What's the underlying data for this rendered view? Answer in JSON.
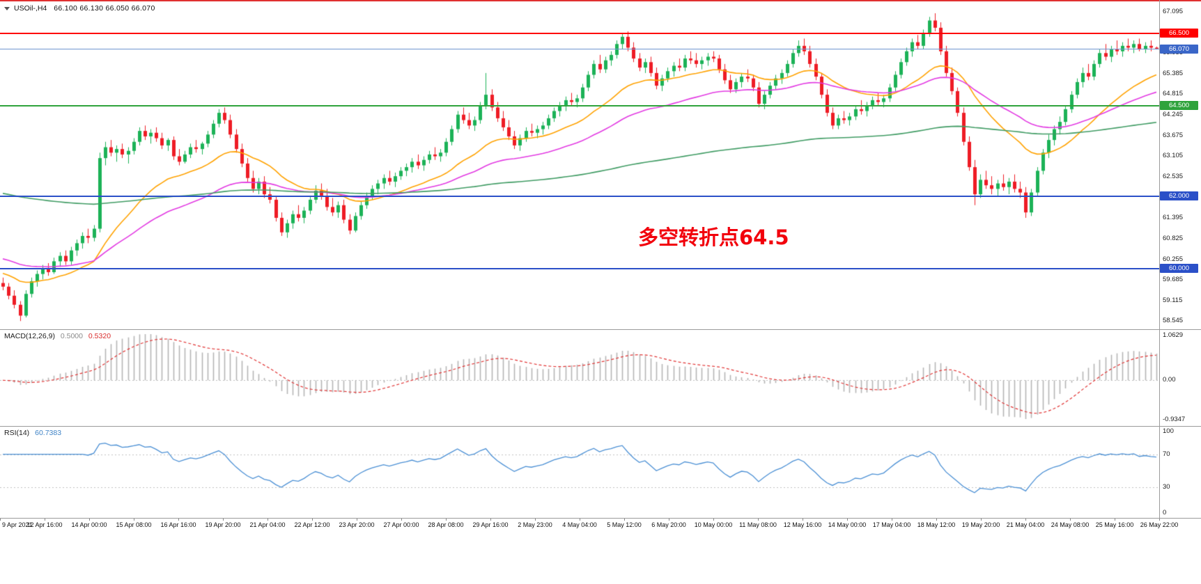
{
  "header": {
    "symbol": "USOil-,H4",
    "ohlc": "66.100 66.130 66.050 66.070"
  },
  "annotation": {
    "text": "多空转折点64.5",
    "color": "#f2000c"
  },
  "macd_panel": {
    "label": "MACD(12,26,9)",
    "value1": "0.5000",
    "value2": "0.5320",
    "axis": [
      "1.0629",
      "0.00",
      "-0.9347"
    ]
  },
  "rsi_panel": {
    "label": "RSI(14)",
    "value": "60.7383",
    "axis": [
      "100",
      "70",
      "30",
      "0"
    ]
  },
  "chart_data": {
    "type": "candlestick",
    "symbol": "USOil-",
    "timeframe": "H4",
    "ylim": [
      58.42,
      67.32
    ],
    "price_ticks": [
      67.095,
      66.525,
      65.955,
      65.385,
      64.815,
      64.245,
      63.675,
      63.105,
      62.535,
      61.965,
      61.395,
      60.825,
      60.255,
      59.685,
      59.115,
      58.545
    ],
    "x_tick_labels": [
      "9 Apr 2021",
      "12 Apr 16:00",
      "14 Apr 00:00",
      "15 Apr 08:00",
      "16 Apr 16:00",
      "19 Apr 20:00",
      "21 Apr 04:00",
      "22 Apr 12:00",
      "23 Apr 20:00",
      "27 Apr 00:00",
      "28 Apr 08:00",
      "29 Apr 16:00",
      "2 May 23:00",
      "4 May 04:00",
      "5 May 12:00",
      "6 May 20:00",
      "10 May 00:00",
      "11 May 08:00",
      "12 May 16:00",
      "14 May 00:00",
      "17 May 04:00",
      "18 May 12:00",
      "19 May 20:00",
      "21 May 04:00",
      "24 May 08:00",
      "25 May 16:00",
      "26 May 22:00"
    ],
    "hlines": [
      {
        "price": 66.5,
        "label": "66.500",
        "color": "#fe0000"
      },
      {
        "price": 64.5,
        "label": "64.500",
        "color": "#2fa33c"
      },
      {
        "price": 62.0,
        "label": "62.000",
        "color": "#2b50c8"
      },
      {
        "price": 60.0,
        "label": "60.000",
        "color": "#2b50c8"
      }
    ],
    "current_price": {
      "value": 66.07,
      "label": "66.070",
      "line_color": "#6f94cf",
      "badge_color": "#3a66c8"
    },
    "colors": {
      "up": "#1cb257",
      "down": "#ee1c25",
      "macd_hist": "#b5b5b5",
      "macd_signal": "#e03131",
      "rsi": "#4a8fd4"
    },
    "moving_averages": [
      {
        "name": "ema-fast",
        "period": 22,
        "seed": 59.9,
        "color": "#ffa200"
      },
      {
        "name": "ema-medium",
        "period": 48,
        "seed": 60.3,
        "color": "#e23ae2"
      },
      {
        "name": "ema-slow",
        "period": 200,
        "seed": 62.1,
        "color": "#3f9b63"
      }
    ],
    "macd_params": [
      12,
      26,
      9
    ],
    "rsi_period": 14,
    "rsi_levels": [
      70,
      30
    ],
    "candles": [
      [
        59.6,
        59.75,
        59.4,
        59.5
      ],
      [
        59.5,
        59.6,
        59.15,
        59.25
      ],
      [
        59.25,
        59.4,
        58.9,
        59.0
      ],
      [
        59.0,
        59.1,
        58.55,
        58.7
      ],
      [
        58.7,
        59.4,
        58.65,
        59.3
      ],
      [
        59.3,
        59.75,
        59.2,
        59.65
      ],
      [
        59.65,
        59.95,
        59.5,
        59.85
      ],
      [
        59.85,
        60.1,
        59.7,
        60.0
      ],
      [
        60.0,
        60.15,
        59.8,
        59.9
      ],
      [
        59.9,
        60.3,
        59.85,
        60.2
      ],
      [
        60.2,
        60.45,
        60.05,
        60.35
      ],
      [
        60.35,
        60.5,
        60.1,
        60.2
      ],
      [
        60.2,
        60.6,
        60.1,
        60.5
      ],
      [
        60.5,
        60.8,
        60.35,
        60.7
      ],
      [
        60.7,
        61.0,
        60.55,
        60.9
      ],
      [
        60.9,
        61.1,
        60.7,
        60.85
      ],
      [
        60.85,
        61.2,
        60.75,
        61.1
      ],
      [
        61.1,
        63.2,
        61.0,
        63.05
      ],
      [
        63.05,
        63.5,
        62.85,
        63.35
      ],
      [
        63.35,
        63.55,
        63.1,
        63.2
      ],
      [
        63.2,
        63.4,
        62.95,
        63.3
      ],
      [
        63.3,
        63.45,
        63.05,
        63.15
      ],
      [
        63.15,
        63.35,
        62.9,
        63.25
      ],
      [
        63.25,
        63.6,
        63.15,
        63.5
      ],
      [
        63.5,
        63.9,
        63.4,
        63.8
      ],
      [
        63.8,
        63.95,
        63.55,
        63.65
      ],
      [
        63.65,
        63.85,
        63.45,
        63.75
      ],
      [
        63.75,
        63.9,
        63.5,
        63.6
      ],
      [
        63.6,
        63.75,
        63.3,
        63.4
      ],
      [
        63.4,
        63.6,
        63.25,
        63.55
      ],
      [
        63.55,
        63.65,
        63.0,
        63.1
      ],
      [
        63.1,
        63.3,
        62.85,
        62.95
      ],
      [
        62.95,
        63.25,
        62.9,
        63.15
      ],
      [
        63.15,
        63.45,
        63.05,
        63.35
      ],
      [
        63.35,
        63.55,
        63.2,
        63.3
      ],
      [
        63.3,
        63.5,
        63.15,
        63.45
      ],
      [
        63.45,
        63.8,
        63.35,
        63.7
      ],
      [
        63.7,
        64.1,
        63.6,
        64.0
      ],
      [
        64.0,
        64.4,
        63.9,
        64.3
      ],
      [
        64.3,
        64.45,
        64.0,
        64.1
      ],
      [
        64.1,
        64.25,
        63.6,
        63.7
      ],
      [
        63.7,
        63.85,
        63.2,
        63.3
      ],
      [
        63.3,
        63.45,
        62.8,
        62.9
      ],
      [
        62.9,
        63.05,
        62.4,
        62.5
      ],
      [
        62.5,
        62.7,
        62.1,
        62.2
      ],
      [
        62.2,
        62.5,
        62.05,
        62.4
      ],
      [
        62.4,
        62.55,
        61.95,
        62.05
      ],
      [
        62.05,
        62.25,
        61.8,
        61.9
      ],
      [
        61.9,
        62.0,
        61.3,
        61.4
      ],
      [
        61.4,
        61.55,
        60.9,
        61.0
      ],
      [
        61.0,
        61.35,
        60.85,
        61.25
      ],
      [
        61.25,
        61.6,
        61.1,
        61.5
      ],
      [
        61.5,
        61.75,
        61.3,
        61.4
      ],
      [
        61.4,
        61.7,
        61.25,
        61.6
      ],
      [
        61.6,
        62.0,
        61.5,
        61.9
      ],
      [
        61.9,
        62.3,
        61.8,
        62.15
      ],
      [
        62.15,
        62.35,
        61.9,
        62.0
      ],
      [
        62.0,
        62.2,
        61.6,
        61.7
      ],
      [
        61.7,
        61.95,
        61.45,
        61.55
      ],
      [
        61.55,
        61.85,
        61.4,
        61.75
      ],
      [
        61.75,
        61.9,
        61.25,
        61.35
      ],
      [
        61.35,
        61.5,
        60.95,
        61.05
      ],
      [
        61.05,
        61.55,
        61.0,
        61.45
      ],
      [
        61.45,
        61.85,
        61.35,
        61.75
      ],
      [
        61.75,
        62.1,
        61.65,
        62.0
      ],
      [
        62.0,
        62.3,
        61.9,
        62.2
      ],
      [
        62.2,
        62.45,
        62.05,
        62.35
      ],
      [
        62.35,
        62.6,
        62.2,
        62.5
      ],
      [
        62.5,
        62.7,
        62.3,
        62.4
      ],
      [
        62.4,
        62.65,
        62.25,
        62.55
      ],
      [
        62.55,
        62.8,
        62.45,
        62.7
      ],
      [
        62.7,
        62.9,
        62.55,
        62.8
      ],
      [
        62.8,
        63.05,
        62.65,
        62.95
      ],
      [
        62.95,
        63.15,
        62.75,
        62.85
      ],
      [
        62.85,
        63.1,
        62.7,
        63.0
      ],
      [
        63.0,
        63.25,
        62.9,
        63.15
      ],
      [
        63.15,
        63.35,
        63.0,
        63.1
      ],
      [
        63.1,
        63.3,
        62.95,
        63.2
      ],
      [
        63.2,
        63.6,
        63.1,
        63.5
      ],
      [
        63.5,
        63.95,
        63.4,
        63.85
      ],
      [
        63.85,
        64.35,
        63.75,
        64.25
      ],
      [
        64.25,
        64.45,
        64.0,
        64.1
      ],
      [
        64.1,
        64.3,
        63.85,
        63.95
      ],
      [
        63.95,
        64.2,
        63.8,
        64.1
      ],
      [
        64.1,
        64.6,
        64.0,
        64.5
      ],
      [
        64.5,
        65.4,
        64.4,
        64.8
      ],
      [
        64.8,
        64.95,
        64.35,
        64.45
      ],
      [
        64.45,
        64.6,
        64.05,
        64.15
      ],
      [
        64.15,
        64.35,
        63.8,
        63.9
      ],
      [
        63.9,
        64.1,
        63.55,
        63.65
      ],
      [
        63.65,
        63.8,
        63.3,
        63.4
      ],
      [
        63.4,
        63.7,
        63.25,
        63.6
      ],
      [
        63.6,
        63.9,
        63.5,
        63.8
      ],
      [
        63.8,
        64.0,
        63.65,
        63.75
      ],
      [
        63.75,
        63.95,
        63.6,
        63.85
      ],
      [
        63.85,
        64.05,
        63.7,
        63.95
      ],
      [
        63.95,
        64.25,
        63.85,
        64.15
      ],
      [
        64.15,
        64.45,
        64.05,
        64.35
      ],
      [
        64.35,
        64.6,
        64.2,
        64.5
      ],
      [
        64.5,
        64.75,
        64.35,
        64.65
      ],
      [
        64.65,
        64.85,
        64.5,
        64.6
      ],
      [
        64.6,
        64.8,
        64.45,
        64.7
      ],
      [
        64.7,
        65.1,
        64.6,
        65.0
      ],
      [
        65.0,
        65.45,
        64.9,
        65.35
      ],
      [
        65.35,
        65.75,
        65.25,
        65.65
      ],
      [
        65.65,
        65.9,
        65.4,
        65.5
      ],
      [
        65.5,
        65.85,
        65.4,
        65.75
      ],
      [
        65.75,
        66.0,
        65.6,
        65.9
      ],
      [
        65.9,
        66.3,
        65.8,
        66.2
      ],
      [
        66.2,
        66.5,
        66.05,
        66.4
      ],
      [
        66.4,
        66.55,
        66.0,
        66.1
      ],
      [
        66.1,
        66.25,
        65.7,
        65.8
      ],
      [
        65.8,
        65.95,
        65.45,
        65.55
      ],
      [
        65.55,
        65.8,
        65.4,
        65.7
      ],
      [
        65.7,
        65.85,
        65.3,
        65.4
      ],
      [
        65.4,
        65.55,
        64.95,
        65.05
      ],
      [
        65.05,
        65.35,
        64.9,
        65.25
      ],
      [
        65.25,
        65.55,
        65.15,
        65.45
      ],
      [
        65.45,
        65.7,
        65.3,
        65.6
      ],
      [
        65.6,
        65.8,
        65.45,
        65.55
      ],
      [
        65.55,
        65.9,
        65.45,
        65.8
      ],
      [
        65.8,
        66.0,
        65.65,
        65.75
      ],
      [
        65.75,
        65.95,
        65.55,
        65.65
      ],
      [
        65.65,
        65.85,
        65.5,
        65.75
      ],
      [
        65.75,
        65.95,
        65.6,
        65.85
      ],
      [
        65.85,
        66.0,
        65.7,
        65.8
      ],
      [
        65.8,
        65.9,
        65.4,
        65.5
      ],
      [
        65.5,
        65.65,
        65.1,
        65.2
      ],
      [
        65.2,
        65.35,
        64.85,
        64.95
      ],
      [
        64.95,
        65.25,
        64.85,
        65.15
      ],
      [
        65.15,
        65.4,
        65.0,
        65.3
      ],
      [
        65.3,
        65.5,
        65.15,
        65.25
      ],
      [
        65.25,
        65.35,
        64.9,
        65.0
      ],
      [
        65.0,
        65.15,
        64.45,
        64.55
      ],
      [
        64.55,
        64.9,
        64.4,
        64.8
      ],
      [
        64.8,
        65.15,
        64.7,
        65.05
      ],
      [
        65.05,
        65.35,
        64.95,
        65.25
      ],
      [
        65.25,
        65.5,
        65.1,
        65.4
      ],
      [
        65.4,
        65.75,
        65.3,
        65.65
      ],
      [
        65.65,
        66.05,
        65.55,
        65.95
      ],
      [
        65.95,
        66.3,
        65.85,
        66.15
      ],
      [
        66.15,
        66.35,
        65.9,
        66.0
      ],
      [
        66.0,
        66.15,
        65.55,
        65.65
      ],
      [
        65.65,
        65.8,
        65.2,
        65.3
      ],
      [
        65.3,
        65.4,
        64.7,
        64.8
      ],
      [
        64.8,
        64.95,
        64.2,
        64.3
      ],
      [
        64.3,
        64.45,
        63.85,
        63.95
      ],
      [
        63.95,
        64.25,
        63.85,
        64.15
      ],
      [
        64.15,
        64.35,
        64.0,
        64.1
      ],
      [
        64.1,
        64.3,
        63.95,
        64.2
      ],
      [
        64.2,
        64.5,
        64.1,
        64.4
      ],
      [
        64.4,
        64.65,
        64.25,
        64.35
      ],
      [
        64.35,
        64.6,
        64.2,
        64.5
      ],
      [
        64.5,
        64.75,
        64.4,
        64.65
      ],
      [
        64.65,
        64.85,
        64.5,
        64.6
      ],
      [
        64.6,
        64.8,
        64.45,
        64.7
      ],
      [
        64.7,
        65.1,
        64.6,
        65.0
      ],
      [
        65.0,
        65.45,
        64.9,
        65.35
      ],
      [
        65.35,
        65.8,
        65.25,
        65.7
      ],
      [
        65.7,
        66.1,
        65.6,
        66.0
      ],
      [
        66.0,
        66.35,
        65.85,
        66.25
      ],
      [
        66.25,
        66.45,
        66.05,
        66.15
      ],
      [
        66.15,
        66.6,
        66.05,
        66.5
      ],
      [
        66.5,
        66.95,
        66.4,
        66.85
      ],
      [
        66.85,
        67.05,
        66.55,
        66.65
      ],
      [
        66.65,
        66.8,
        65.9,
        66.0
      ],
      [
        66.0,
        66.15,
        65.3,
        65.4
      ],
      [
        65.4,
        65.55,
        64.8,
        64.9
      ],
      [
        64.9,
        65.0,
        64.2,
        64.3
      ],
      [
        64.3,
        64.45,
        63.4,
        63.5
      ],
      [
        63.5,
        63.65,
        62.7,
        62.8
      ],
      [
        62.8,
        63.0,
        61.75,
        62.05
      ],
      [
        62.05,
        62.6,
        61.95,
        62.45
      ],
      [
        62.45,
        62.7,
        62.2,
        62.3
      ],
      [
        62.3,
        62.55,
        62.05,
        62.2
      ],
      [
        62.2,
        62.45,
        62.0,
        62.35
      ],
      [
        62.35,
        62.6,
        62.15,
        62.25
      ],
      [
        62.25,
        62.5,
        62.05,
        62.4
      ],
      [
        62.4,
        62.6,
        62.1,
        62.2
      ],
      [
        62.2,
        62.4,
        61.95,
        62.1
      ],
      [
        62.1,
        62.25,
        61.4,
        61.55
      ],
      [
        61.55,
        62.2,
        61.45,
        62.1
      ],
      [
        62.1,
        62.8,
        62.0,
        62.7
      ],
      [
        62.7,
        63.3,
        62.6,
        63.2
      ],
      [
        63.2,
        63.7,
        63.05,
        63.55
      ],
      [
        63.55,
        63.95,
        63.4,
        63.85
      ],
      [
        63.85,
        64.2,
        63.7,
        64.05
      ],
      [
        64.05,
        64.5,
        63.95,
        64.4
      ],
      [
        64.4,
        64.9,
        64.3,
        64.8
      ],
      [
        64.8,
        65.25,
        64.7,
        65.15
      ],
      [
        65.15,
        65.55,
        65.0,
        65.4
      ],
      [
        65.4,
        65.65,
        65.2,
        65.3
      ],
      [
        65.3,
        65.75,
        65.2,
        65.65
      ],
      [
        65.65,
        66.05,
        65.55,
        65.95
      ],
      [
        65.95,
        66.2,
        65.75,
        65.85
      ],
      [
        65.85,
        66.15,
        65.7,
        66.05
      ],
      [
        66.05,
        66.3,
        65.9,
        66.0
      ],
      [
        66.0,
        66.25,
        65.85,
        66.15
      ],
      [
        66.15,
        66.35,
        66.0,
        66.1
      ],
      [
        66.1,
        66.3,
        65.95,
        66.2
      ],
      [
        66.2,
        66.35,
        66.0,
        66.05
      ],
      [
        66.05,
        66.25,
        65.95,
        66.15
      ],
      [
        66.15,
        66.3,
        66.0,
        66.1
      ],
      [
        66.1,
        66.13,
        66.05,
        66.07
      ]
    ]
  }
}
